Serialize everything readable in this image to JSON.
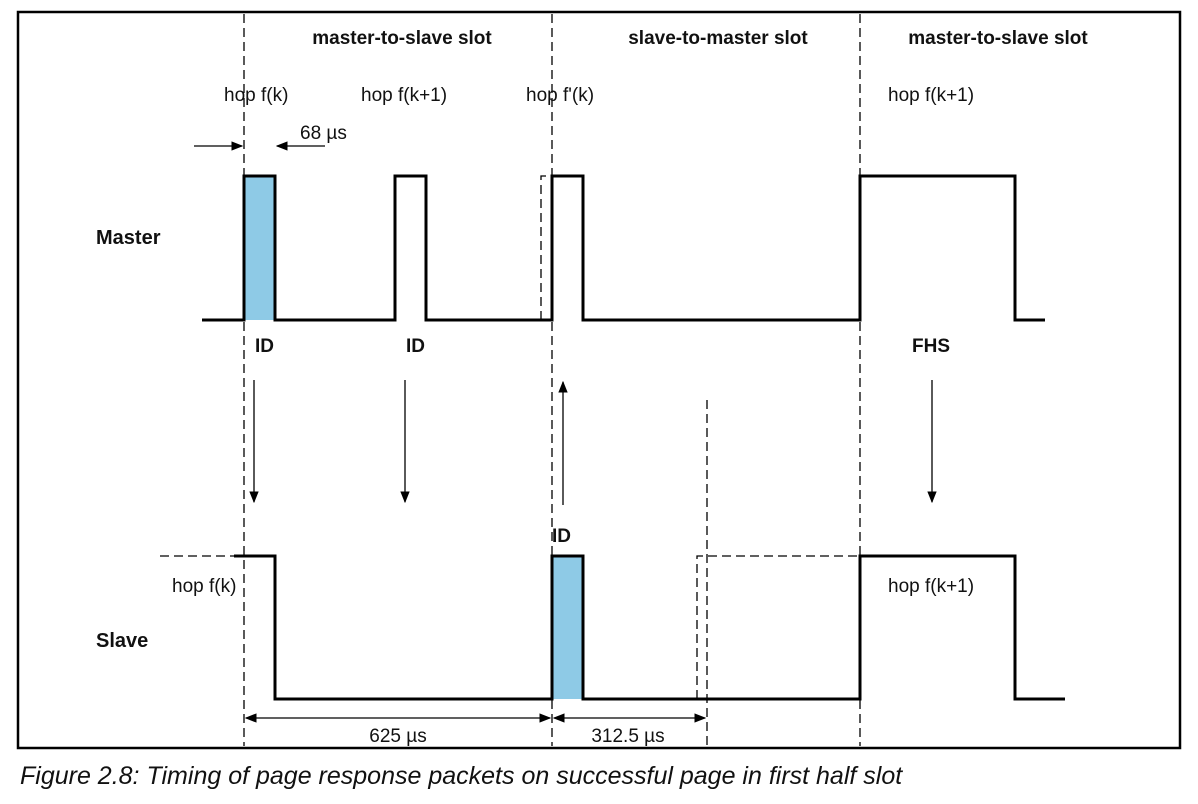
{
  "slots": [
    "master-to-slave slot",
    "slave-to-master slot",
    "master-to-slave slot"
  ],
  "hops_top": [
    "hop f(k)",
    "hop f(k+1)",
    "hop f'(k)",
    "hop f(k+1)"
  ],
  "hops_bottom": [
    "hop f(k)",
    "hop f(k+1)"
  ],
  "interval_68": "68 µs",
  "rows": {
    "master": "Master",
    "slave": "Slave"
  },
  "packets": [
    "ID",
    "ID",
    "FHS",
    "ID"
  ],
  "measures": {
    "slot": "625 µs",
    "half_slot": "312.5 µs"
  },
  "caption": "Figure 2.8:  Timing of page response packets on successful page in first half slot",
  "colors": {
    "packet_fill": "#8ecae6",
    "line": "#000000"
  }
}
